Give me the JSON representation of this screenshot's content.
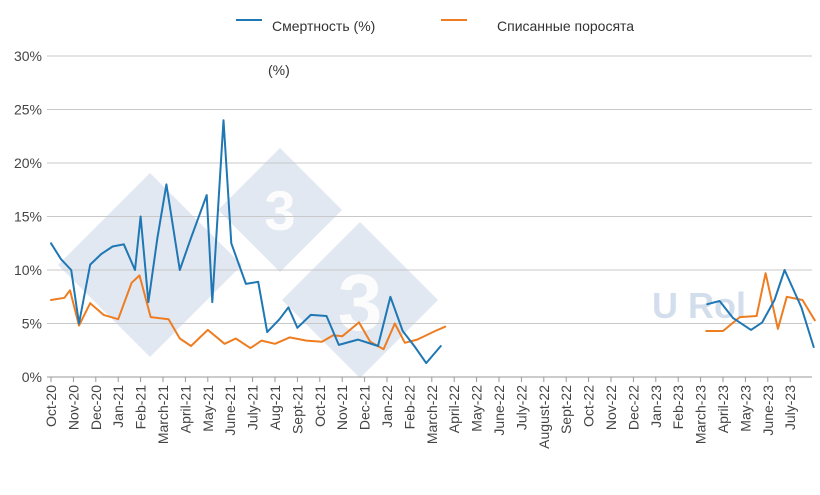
{
  "legend": {
    "series1": "Смертность (%)",
    "series2": "Списанные поросята"
  },
  "subtitle": "(%)",
  "watermark": {
    "digit": "3",
    "text": "U Rol"
  },
  "colors": {
    "series1": "#1f77b4",
    "series2": "#ee7d22",
    "grid": "#c8c8c8",
    "watermark": "#c9d6e8"
  },
  "chart_data": {
    "type": "line",
    "ylim": [
      0,
      30
    ],
    "yticks": [
      "0%",
      "5%",
      "10%",
      "15%",
      "20%",
      "25%",
      "30%"
    ],
    "ytick_values": [
      0,
      5,
      10,
      15,
      20,
      25,
      30
    ],
    "grid": true,
    "legend_position": "top",
    "x_labels": [
      "Oct-20",
      "Nov-20",
      "Dec-20",
      "Jan-21",
      "Feb-21",
      "March-21",
      "April-21",
      "May-21",
      "June-21",
      "July-21",
      "Aug-21",
      "Sept-21",
      "Oct-21",
      "Nov-21",
      "Dec-21",
      "Jan-22",
      "Feb-22",
      "March-22",
      "April-22",
      "May-22",
      "June-22",
      "July-22",
      "August-22",
      "Sept-22",
      "Oct-22",
      "Nov-22",
      "Dec-22",
      "Jan-23",
      "Feb-23",
      "March-23",
      "April-23",
      "May-23",
      "June-23",
      "July-23"
    ],
    "series": [
      {
        "name": "Смертность (%)",
        "segments": [
          [
            [
              0.0,
              12.5
            ],
            [
              0.45,
              11
            ],
            [
              0.9,
              10
            ],
            [
              1.25,
              5
            ],
            [
              1.75,
              10.5
            ],
            [
              2.25,
              11.5
            ],
            [
              2.75,
              12.2
            ],
            [
              3.25,
              12.4
            ],
            [
              3.75,
              10
            ],
            [
              4.0,
              15
            ],
            [
              4.35,
              7
            ],
            [
              4.75,
              13
            ],
            [
              5.15,
              18
            ],
            [
              5.75,
              10
            ],
            [
              6.25,
              13
            ],
            [
              6.95,
              17
            ],
            [
              7.2,
              7
            ],
            [
              7.7,
              24
            ],
            [
              8.05,
              12.5
            ],
            [
              8.7,
              8.7
            ],
            [
              9.25,
              8.9
            ],
            [
              9.65,
              4.2
            ],
            [
              10.2,
              5.4
            ],
            [
              10.6,
              6.5
            ],
            [
              11.0,
              4.6
            ],
            [
              11.6,
              5.8
            ],
            [
              12.3,
              5.7
            ],
            [
              12.85,
              3
            ],
            [
              13.7,
              3.5
            ],
            [
              14.6,
              2.9
            ],
            [
              15.15,
              7.5
            ],
            [
              15.7,
              4.3
            ],
            [
              16.25,
              2.8
            ],
            [
              16.75,
              1.3
            ],
            [
              17.4,
              2.9
            ]
          ],
          [
            [
              29.3,
              6.8
            ],
            [
              29.85,
              7.1
            ],
            [
              30.45,
              5.5
            ],
            [
              31.25,
              4.4
            ],
            [
              31.75,
              5.1
            ],
            [
              32.3,
              7.2
            ],
            [
              32.75,
              10
            ],
            [
              33.5,
              6.5
            ],
            [
              34.05,
              2.8
            ]
          ]
        ]
      },
      {
        "name": "Списанные поросята",
        "segments": [
          [
            [
              0.0,
              7.2
            ],
            [
              0.6,
              7.4
            ],
            [
              0.85,
              8.1
            ],
            [
              1.25,
              4.8
            ],
            [
              1.75,
              6.9
            ],
            [
              2.35,
              5.8
            ],
            [
              3.0,
              5.4
            ],
            [
              3.6,
              8.8
            ],
            [
              3.95,
              9.5
            ],
            [
              4.45,
              5.6
            ],
            [
              5.25,
              5.4
            ],
            [
              5.75,
              3.6
            ],
            [
              6.25,
              2.9
            ],
            [
              7.0,
              4.4
            ],
            [
              7.75,
              3.1
            ],
            [
              8.25,
              3.6
            ],
            [
              8.9,
              2.7
            ],
            [
              9.4,
              3.4
            ],
            [
              10.0,
              3.1
            ],
            [
              10.65,
              3.7
            ],
            [
              11.4,
              3.4
            ],
            [
              12.1,
              3.3
            ],
            [
              12.6,
              3.9
            ],
            [
              13.0,
              3.8
            ],
            [
              13.75,
              5.1
            ],
            [
              14.25,
              3.3
            ],
            [
              14.85,
              2.6
            ],
            [
              15.35,
              5
            ],
            [
              15.8,
              3.2
            ],
            [
              16.35,
              3.5
            ],
            [
              17.15,
              4.3
            ],
            [
              17.6,
              4.7
            ]
          ],
          [
            [
              29.25,
              4.3
            ],
            [
              30.0,
              4.3
            ],
            [
              30.75,
              5.6
            ],
            [
              31.5,
              5.7
            ],
            [
              31.9,
              9.7
            ],
            [
              32.45,
              4.5
            ],
            [
              32.85,
              7.5
            ],
            [
              33.55,
              7.2
            ],
            [
              34.1,
              5.3
            ]
          ]
        ]
      }
    ]
  }
}
